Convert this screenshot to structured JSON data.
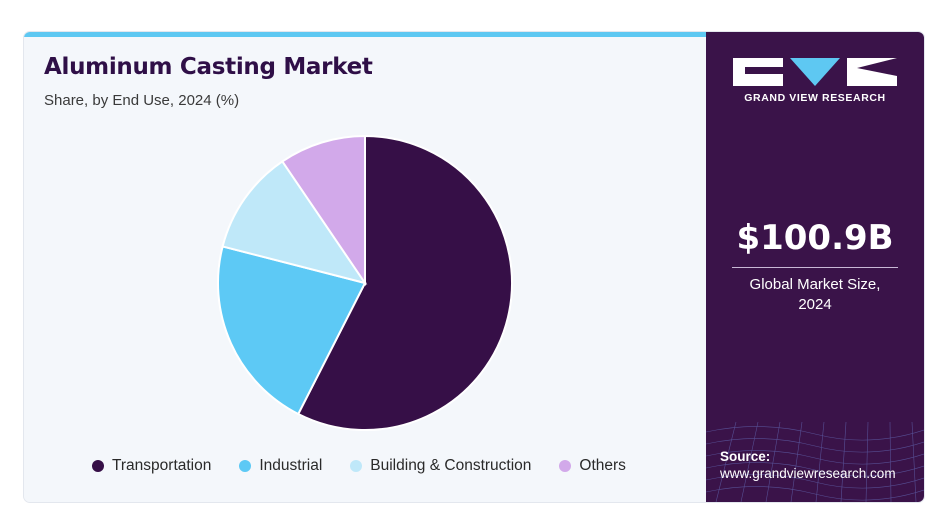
{
  "header": {
    "title": "Aluminum Casting Market",
    "subtitle": "Share, by End Use, 2024 (%)"
  },
  "brand": {
    "name": "GRAND VIEW RESEARCH",
    "panel_color": "#3a1349",
    "accent_color": "#5ec8f2"
  },
  "stat": {
    "value": "$100.9B",
    "caption_line1": "Global Market Size,",
    "caption_line2": "2024"
  },
  "source": {
    "label": "Source:",
    "url": "www.grandviewresearch.com"
  },
  "chart_data": {
    "type": "pie",
    "categories": [
      "Transportation",
      "Industrial",
      "Building & Construction",
      "Others"
    ],
    "values": [
      57.5,
      21.5,
      11.5,
      9.5
    ],
    "colors": [
      "#360f47",
      "#5dc9f5",
      "#bfe8f9",
      "#d2a9ea"
    ],
    "start_angle_deg": 0,
    "direction": "clockwise",
    "legend_position": "bottom"
  }
}
